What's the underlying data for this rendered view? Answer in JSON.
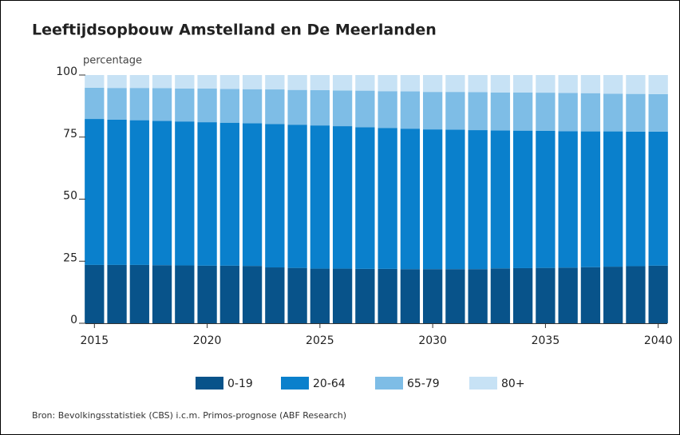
{
  "chart_data": {
    "type": "stacked-bar",
    "title": "Leeftijdsopbouw Amstelland en De Meerlanden",
    "y_axis_label": "percentage",
    "source": "Bron: Bevolkingsstatistiek (CBS) i.c.m. Primos-prognose (ABF Research)",
    "x": [
      2015,
      2016,
      2017,
      2018,
      2019,
      2020,
      2021,
      2022,
      2023,
      2024,
      2025,
      2026,
      2027,
      2028,
      2029,
      2030,
      2031,
      2032,
      2033,
      2034,
      2035,
      2036,
      2037,
      2038,
      2039,
      2040
    ],
    "xlim": [
      2014.6,
      2040.4
    ],
    "xticks": [
      2015,
      2020,
      2025,
      2030,
      2035,
      2040
    ],
    "ylim": [
      0,
      100
    ],
    "yticks": [
      0,
      25,
      50,
      75,
      100
    ],
    "grid": false,
    "legend": "bottom",
    "series": [
      {
        "name": "0-19",
        "color": "#08538a",
        "values": [
          23.5,
          23.5,
          23.5,
          23.4,
          23.3,
          23.2,
          23.2,
          23.1,
          22.5,
          22.3,
          22.0,
          22.0,
          21.9,
          21.9,
          21.8,
          21.8,
          21.8,
          21.8,
          22.1,
          22.2,
          22.3,
          22.4,
          22.6,
          22.8,
          23.0,
          23.2
        ]
      },
      {
        "name": "20-64",
        "color": "#0a80cc",
        "values": [
          58.8,
          58.5,
          58.3,
          58.1,
          58.0,
          57.8,
          57.6,
          57.5,
          57.8,
          57.7,
          57.7,
          57.4,
          57.1,
          56.8,
          56.6,
          56.3,
          56.2,
          56.0,
          55.6,
          55.4,
          55.2,
          55.0,
          54.7,
          54.5,
          54.2,
          54.0
        ]
      },
      {
        "name": "65-79",
        "color": "#7ebde6",
        "values": [
          12.6,
          12.8,
          13.0,
          13.2,
          13.3,
          13.6,
          13.6,
          13.7,
          13.9,
          14.0,
          14.2,
          14.4,
          14.7,
          14.8,
          15.0,
          15.1,
          15.2,
          15.3,
          15.3,
          15.4,
          15.4,
          15.4,
          15.4,
          15.2,
          15.2,
          15.1
        ]
      },
      {
        "name": "80+",
        "color": "#c7e2f5",
        "values": [
          5.1,
          5.2,
          5.2,
          5.3,
          5.4,
          5.4,
          5.6,
          5.7,
          5.8,
          6.0,
          6.1,
          6.2,
          6.3,
          6.5,
          6.6,
          6.8,
          6.8,
          6.9,
          7.0,
          7.0,
          7.1,
          7.2,
          7.3,
          7.5,
          7.6,
          7.7
        ]
      }
    ]
  }
}
